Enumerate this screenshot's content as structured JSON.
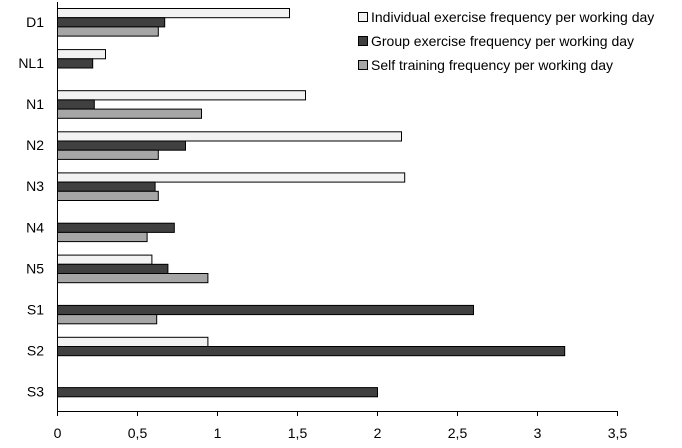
{
  "chart_data": {
    "type": "bar",
    "orientation": "horizontal",
    "categories": [
      "D1",
      "NL1",
      "N1",
      "N2",
      "N3",
      "N4",
      "N5",
      "S1",
      "S2",
      "S3"
    ],
    "series": [
      {
        "name": "Individual exercise frequency per working day",
        "color": "#f2f2f2",
        "values": [
          1.45,
          0.3,
          1.55,
          2.15,
          2.17,
          0,
          0.59,
          0,
          0.94,
          0
        ]
      },
      {
        "name": "Group exercise frequency per working day",
        "color": "#404040",
        "values": [
          0.67,
          0.22,
          0.23,
          0.8,
          0.61,
          0.73,
          0.69,
          2.6,
          3.17,
          2.0
        ]
      },
      {
        "name": "Self training frequency per working day",
        "color": "#a6a6a6",
        "values": [
          0.63,
          0,
          0.9,
          0.63,
          0.63,
          0.56,
          0.94,
          0.62,
          0,
          0
        ]
      }
    ],
    "xlim": [
      0,
      3.5
    ],
    "xticks": [
      "0",
      "0,5",
      "1",
      "1,5",
      "2",
      "2,5",
      "3",
      "3,5"
    ],
    "title": "",
    "xlabel": "",
    "ylabel": "",
    "grid": false,
    "legend_position": "top-right"
  }
}
